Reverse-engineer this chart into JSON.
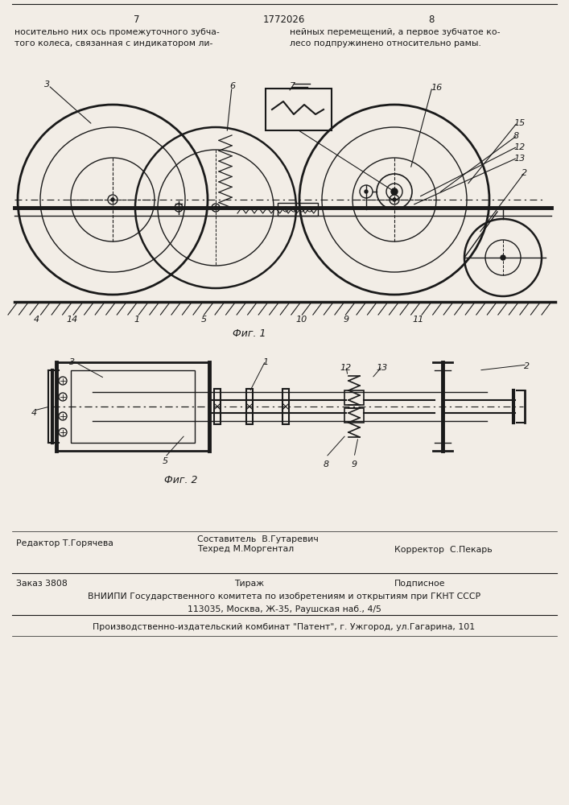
{
  "page_number_left": "7",
  "patent_number": "1772026",
  "page_number_right": "8",
  "text_left": "носительно них ось промежуточного зубча-\nтого колеса, связанная с индикатором ли-",
  "text_right": "нейных перемещений, а первое зубчатое ко-\nлесо подпружинено относительно рамы.",
  "fig1_caption": "Фиг. 1",
  "fig2_caption": "Фиг. 2",
  "footer_row1_col1": "Редактор Т.Горячева",
  "footer_row1_col2": "Составитель  В.Гутаревич\nТехред М.Моргентал",
  "footer_row1_col3": "Корректор  С.Пекарь",
  "footer_row2_col1": "Заказ 3808",
  "footer_row2_col2": "Тираж",
  "footer_row2_col3": "Подписное",
  "footer_row3": "ВНИИПИ Государственного комитета по изобретениям и открытиям при ГКНТ СССР",
  "footer_row4": "113035, Москва, Ж-35, Раушская наб., 4/5",
  "footer_row5": "Производственно-издательский комбинат \"Патент\", г. Ужгород, ул.Гагарина, 101",
  "bg_color": "#f2ede6",
  "line_color": "#1a1a1a",
  "text_color": "#1a1a1a"
}
